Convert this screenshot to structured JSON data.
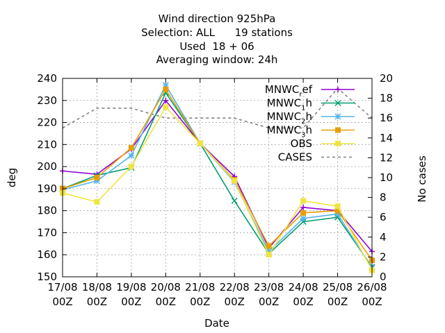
{
  "chart_data": {
    "type": "line",
    "title_lines": [
      "Wind direction 925hPa",
      "Selection: ALL      19 stations",
      "Used  18 + 06",
      "Averaging window: 24h"
    ],
    "xlabel": "Date",
    "ylabel": "deg",
    "y2label": "No cases",
    "x": [
      "17/08 00Z",
      "18/08 00Z",
      "19/08 00Z",
      "20/08 00Z",
      "21/08 00Z",
      "22/08 00Z",
      "23/08 00Z",
      "24/08 00Z",
      "25/08 00Z",
      "26/08 00Z"
    ],
    "ylim": [
      150,
      240
    ],
    "yticks": [
      150,
      160,
      170,
      180,
      190,
      200,
      210,
      220,
      230,
      240
    ],
    "y2lim": [
      0,
      20
    ],
    "y2ticks": [
      0,
      2,
      4,
      6,
      8,
      10,
      12,
      14,
      16,
      18,
      20
    ],
    "grid": true,
    "legend_position": "top-right",
    "series": [
      {
        "name": "MNWC_ref",
        "legend": {
          "main": "MNWC",
          "sub": "r",
          "rest": "ef"
        },
        "color": "#9400d3",
        "marker": "plus",
        "dash": false,
        "axis": "y",
        "values": [
          198,
          196.5,
          208,
          230,
          210.5,
          195.5,
          163,
          181.5,
          180,
          161.5
        ]
      },
      {
        "name": "MNWC_1h",
        "legend": {
          "main": "MNWC",
          "sub": "1",
          "rest": "h"
        },
        "color": "#009e73",
        "marker": "x",
        "dash": false,
        "axis": "y",
        "values": [
          190,
          196,
          199.5,
          233.5,
          210.5,
          184.5,
          160.5,
          175,
          177,
          154.5
        ]
      },
      {
        "name": "MNWC_2h",
        "legend": {
          "main": "MNWC",
          "sub": "2",
          "rest": "h"
        },
        "color": "#56b4e9",
        "marker": "star",
        "dash": false,
        "axis": "y",
        "values": [
          189.5,
          193.5,
          205,
          237,
          210.5,
          193,
          161.5,
          176.5,
          178.5,
          154
        ]
      },
      {
        "name": "MNWC_3h",
        "legend": {
          "main": "MNWC",
          "sub": "3",
          "rest": "h"
        },
        "color": "#e69f00",
        "marker": "box",
        "dash": false,
        "axis": "y",
        "values": [
          190,
          195,
          208.5,
          235,
          210.5,
          194,
          164,
          179,
          180,
          157.5
        ]
      },
      {
        "name": "OBS",
        "legend": {
          "main": "OBS",
          "sub": "",
          "rest": ""
        },
        "color": "#f0e442",
        "marker": "boxfill",
        "dash": false,
        "axis": "y",
        "values": [
          188,
          184,
          200,
          227,
          210.5,
          193.5,
          160,
          184.5,
          182,
          153
        ]
      },
      {
        "name": "CASES",
        "legend": {
          "main": "CASES",
          "sub": "",
          "rest": ""
        },
        "color": "#808080",
        "marker": "none",
        "dash": true,
        "axis": "y2",
        "values": [
          15,
          17,
          17,
          16,
          16,
          16,
          15,
          15,
          19,
          16
        ]
      }
    ]
  }
}
